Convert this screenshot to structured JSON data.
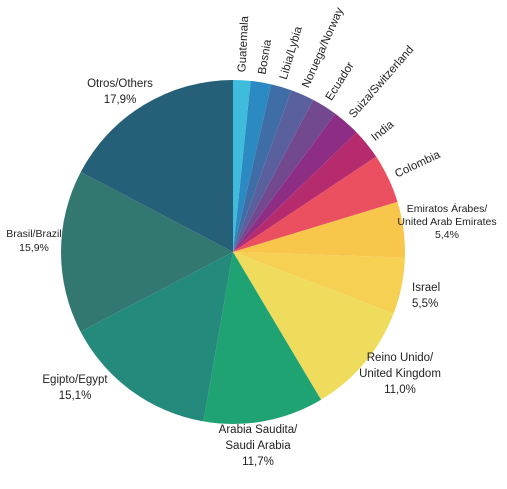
{
  "chart_data": {
    "type": "pie",
    "start": "top",
    "direction": "clockwise",
    "slices": [
      {
        "name": "Guatemala",
        "value": 1.7,
        "color": "#3fbcdc",
        "label": [
          "Guatemala"
        ],
        "pct": ""
      },
      {
        "name": "Bosnia",
        "value": 2.0,
        "color": "#2b8ac2",
        "label": [
          "Bosnia"
        ],
        "pct": ""
      },
      {
        "name": "Libia/Lybia",
        "value": 2.0,
        "color": "#3f6ea6",
        "label": [
          "Libia/Lybia"
        ],
        "pct": ""
      },
      {
        "name": "Noruega/Norway",
        "value": 2.3,
        "color": "#5a5f9e",
        "label": [
          "Noruega/Norway"
        ],
        "pct": ""
      },
      {
        "name": "Ecuador",
        "value": 2.5,
        "color": "#72488f",
        "label": [
          "Ecuador"
        ],
        "pct": ""
      },
      {
        "name": "Suiza/Switzerland",
        "value": 2.7,
        "color": "#8d2e84",
        "label": [
          "Suiza/Switzerland"
        ],
        "pct": ""
      },
      {
        "name": "India",
        "value": 3.0,
        "color": "#b62a6e",
        "label": [
          "India"
        ],
        "pct": ""
      },
      {
        "name": "Colombia",
        "value": 4.8,
        "color": "#ea5060",
        "label": [
          "Colombia"
        ],
        "pct": ""
      },
      {
        "name": "Emiratos Árabes/United Arab Emirates",
        "value": 5.4,
        "color": "#f7c64a",
        "label": [
          "Emiratos Árabes/",
          "United Arab Emirates"
        ],
        "pct": "5,4%"
      },
      {
        "name": "Israel",
        "value": 5.5,
        "color": "#f6d052",
        "label": [
          "Israel"
        ],
        "pct": "5,5%"
      },
      {
        "name": "Reino Unido/United Kingdom",
        "value": 11.0,
        "color": "#efdc5c",
        "label": [
          "Reino Unido/",
          "United Kingdom"
        ],
        "pct": "11,0%"
      },
      {
        "name": "Arabia Saudita/Saudi Arabia",
        "value": 11.7,
        "color": "#1fa372",
        "label": [
          "Arabia Saudita/",
          "Saudi Arabia"
        ],
        "pct": "11,7%"
      },
      {
        "name": "Egipto/Egypt",
        "value": 15.1,
        "color": "#238a7c",
        "label": [
          "Egipto/Egypt"
        ],
        "pct": "15,1%"
      },
      {
        "name": "Brasil/Brazil",
        "value": 15.9,
        "color": "#327871",
        "label": [
          "Brasil/Brazil"
        ],
        "pct": "15,9%"
      },
      {
        "name": "Otros/Others",
        "value": 17.9,
        "color": "#255f78",
        "label": [
          "Otros/Others"
        ],
        "pct": "17,9%"
      }
    ]
  }
}
